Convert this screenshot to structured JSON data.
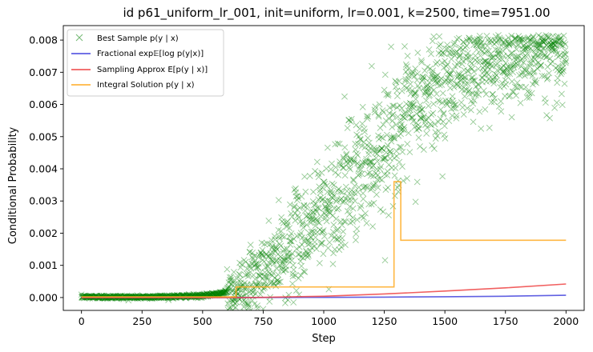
{
  "chart_data": {
    "type": "scatter",
    "title": "id p61_uniform_lr_001, init=uniform, lr=0.001, k=2500, time=7951.00",
    "xlabel": "Step",
    "ylabel": "Conditional Probability",
    "xlim": [
      -75,
      2075
    ],
    "ylim": [
      -0.0004,
      0.00845
    ],
    "xticks": [
      0,
      250,
      500,
      750,
      1000,
      1250,
      1500,
      1750,
      2000
    ],
    "xtick_labels": [
      "0",
      "250",
      "500",
      "750",
      "1000",
      "1250",
      "1500",
      "1750",
      "2000"
    ],
    "yticks": [
      0.0,
      0.001,
      0.002,
      0.003,
      0.004,
      0.005,
      0.006,
      0.007,
      0.008
    ],
    "ytick_labels": [
      "0.000",
      "0.001",
      "0.002",
      "0.003",
      "0.004",
      "0.005",
      "0.006",
      "0.007",
      "0.008"
    ],
    "grid": false,
    "legend_position": "top-left",
    "series": [
      {
        "name": "Best Sample p(y | x)",
        "kind": "scatter-x",
        "color": "#008000",
        "description_points": [
          [
            0,
            2e-05
          ],
          [
            250,
            1e-05
          ],
          [
            500,
            5e-05
          ],
          [
            625,
            0.0002
          ],
          [
            750,
            0.0007
          ],
          [
            875,
            0.0017
          ],
          [
            1000,
            0.0027
          ],
          [
            1125,
            0.0037
          ],
          [
            1250,
            0.0048
          ],
          [
            1375,
            0.0058
          ],
          [
            1500,
            0.0066
          ],
          [
            1625,
            0.0071
          ],
          [
            1750,
            0.0074
          ],
          [
            1875,
            0.0076
          ],
          [
            2000,
            0.0077
          ]
        ]
      },
      {
        "name": "Fractional exp E[log p(y|x)]",
        "kind": "line",
        "color": "#4444dd",
        "points": [
          [
            0,
            0.0
          ],
          [
            700,
            0.0
          ],
          [
            1000,
            5e-06
          ],
          [
            1250,
            1.2e-05
          ],
          [
            1500,
            2.5e-05
          ],
          [
            1750,
            4e-05
          ],
          [
            2000,
            7e-05
          ]
        ]
      },
      {
        "name": "Sampling Approx E[p(y | x)]",
        "kind": "line",
        "color": "#ee4444",
        "points": [
          [
            0,
            0.0
          ],
          [
            650,
            0.0
          ],
          [
            750,
            5e-06
          ],
          [
            1000,
            4e-05
          ],
          [
            1250,
            0.00011
          ],
          [
            1500,
            0.0002
          ],
          [
            1750,
            0.0003
          ],
          [
            2000,
            0.00042
          ]
        ]
      },
      {
        "name": "Integral Solution p(y | x)",
        "kind": "step",
        "color": "#ffaa22",
        "points": [
          [
            0,
            2e-05
          ],
          [
            638,
            2e-05
          ],
          [
            638,
            0.00033
          ],
          [
            1290,
            0.00033
          ],
          [
            1290,
            0.0036
          ],
          [
            1318,
            0.0036
          ],
          [
            1318,
            0.00178
          ],
          [
            2000,
            0.00178
          ]
        ]
      }
    ]
  },
  "legend": {
    "items": [
      {
        "label": "Best Sample p(y | x)",
        "color": "#008000",
        "marker": "x"
      },
      {
        "label": "Fractional exp𝔼[log p(y|x)]",
        "color": "#4444dd",
        "marker": "line"
      },
      {
        "label": "Sampling Approx E[p(y | x)]",
        "color": "#ee4444",
        "marker": "line"
      },
      {
        "label": "Integral Solution p(y | x)",
        "color": "#ffaa22",
        "marker": "line"
      }
    ]
  }
}
